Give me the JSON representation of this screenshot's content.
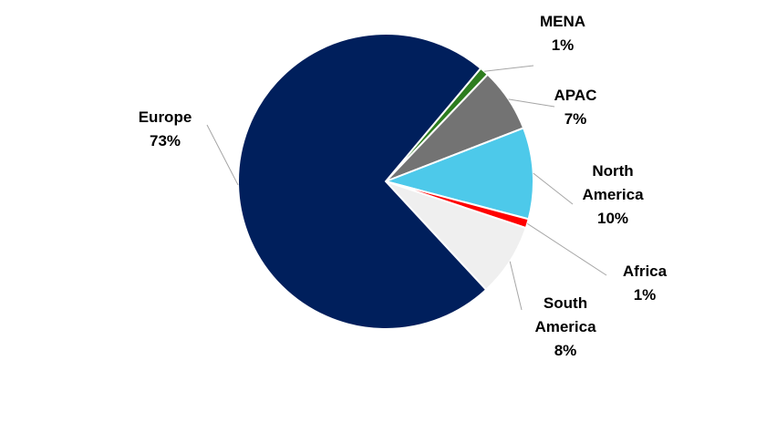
{
  "chart_data": {
    "type": "pie",
    "title": "",
    "legend": "none",
    "start": "top",
    "direction": "clockwise",
    "slices": [
      {
        "name": "MENA",
        "label_lines": [
          "MENA",
          "1%"
        ],
        "value": 1,
        "color": "#2e7d1f"
      },
      {
        "name": "APAC",
        "label_lines": [
          "APAC",
          "7%"
        ],
        "value": 7,
        "color": "#737373"
      },
      {
        "name": "North America",
        "label_lines": [
          "North",
          "America",
          "10%"
        ],
        "value": 10,
        "color": "#4dc9ea"
      },
      {
        "name": "Africa",
        "label_lines": [
          "Africa",
          "1%"
        ],
        "value": 1,
        "color": "#ff0000"
      },
      {
        "name": "South America",
        "label_lines": [
          "South",
          "America",
          "8%"
        ],
        "value": 8,
        "color": "#efefef"
      },
      {
        "name": "Europe",
        "label_lines": [
          "Europe",
          "73%"
        ],
        "value": 73,
        "color": "#001f5c"
      }
    ]
  }
}
